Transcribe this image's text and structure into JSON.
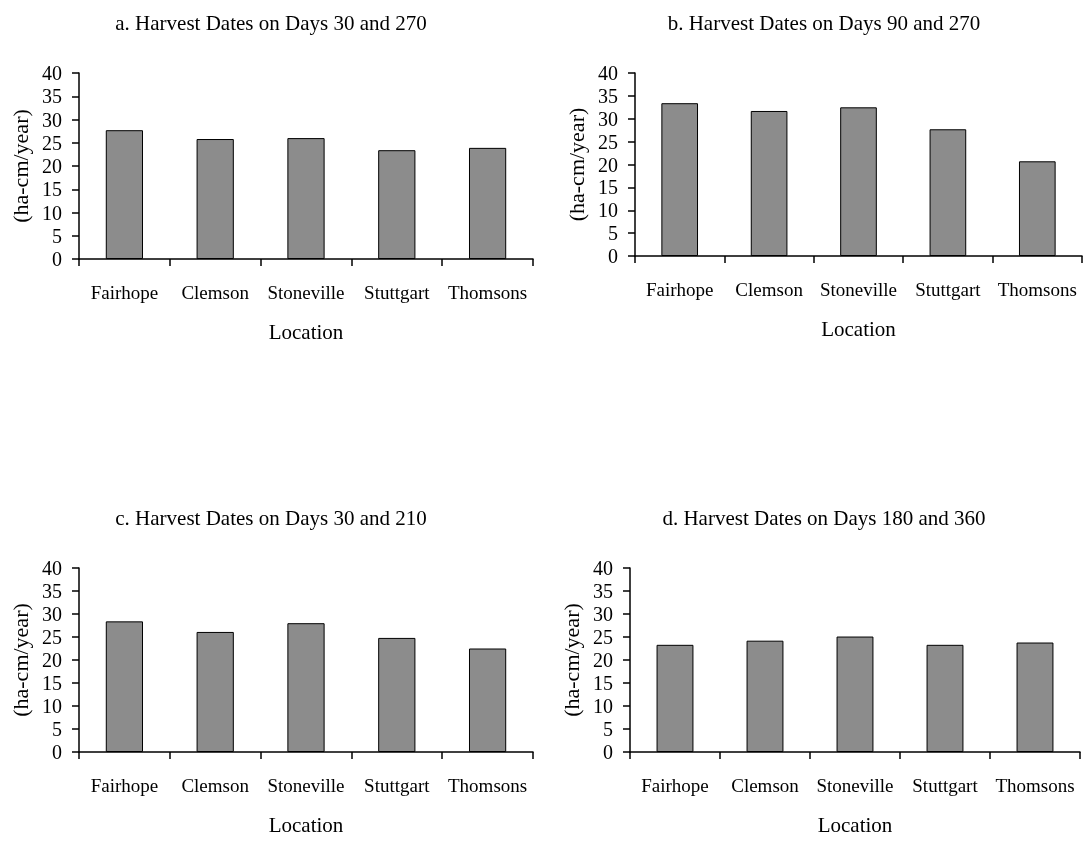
{
  "chart_data": [
    {
      "type": "bar",
      "title": "a. Harvest Dates on Days 30 and 270",
      "categories": [
        "Fairhope",
        "Clemson",
        "Stoneville",
        "Stuttgart",
        "Thomsons"
      ],
      "values": [
        27.7,
        25.8,
        26.0,
        23.4,
        23.9
      ],
      "color": "#8c8c8c",
      "xlabel": "Location",
      "ylabel": "(ha-cm/year)",
      "ylim": [
        0,
        40
      ],
      "yticks": [
        0,
        5,
        10,
        15,
        20,
        25,
        30,
        35,
        40
      ]
    },
    {
      "type": "bar",
      "title": "b. Harvest Dates on Days 90 and 270",
      "categories": [
        "Fairhope",
        "Clemson",
        "Stoneville",
        "Stuttgart",
        "Thomsons"
      ],
      "values": [
        33.4,
        31.7,
        32.5,
        27.7,
        20.7
      ],
      "color": "#8c8c8c",
      "xlabel": "Location",
      "ylabel": "(ha-cm/year)",
      "ylim": [
        0,
        40
      ],
      "yticks": [
        0,
        5,
        10,
        15,
        20,
        25,
        30,
        35,
        40
      ]
    },
    {
      "type": "bar",
      "title": "c. Harvest Dates on Days 30 and 210",
      "categories": [
        "Fairhope",
        "Clemson",
        "Stoneville",
        "Stuttgart",
        "Thomsons"
      ],
      "values": [
        28.4,
        26.1,
        28.0,
        24.8,
        22.5
      ],
      "color": "#8c8c8c",
      "xlabel": "Location",
      "ylabel": "(ha-cm/year)",
      "ylim": [
        0,
        40
      ],
      "yticks": [
        0,
        5,
        10,
        15,
        20,
        25,
        30,
        35,
        40
      ]
    },
    {
      "type": "bar",
      "title": "d. Harvest Dates on Days 180 and 360",
      "categories": [
        "Fairhope",
        "Clemson",
        "Stoneville",
        "Stuttgart",
        "Thomsons"
      ],
      "values": [
        23.3,
        24.2,
        25.1,
        23.3,
        23.8
      ],
      "color": "#8c8c8c",
      "xlabel": "Location",
      "ylabel": "(ha-cm/year)",
      "ylim": [
        0,
        40
      ],
      "yticks": [
        0,
        5,
        10,
        15,
        20,
        25,
        30,
        35,
        40
      ]
    }
  ]
}
